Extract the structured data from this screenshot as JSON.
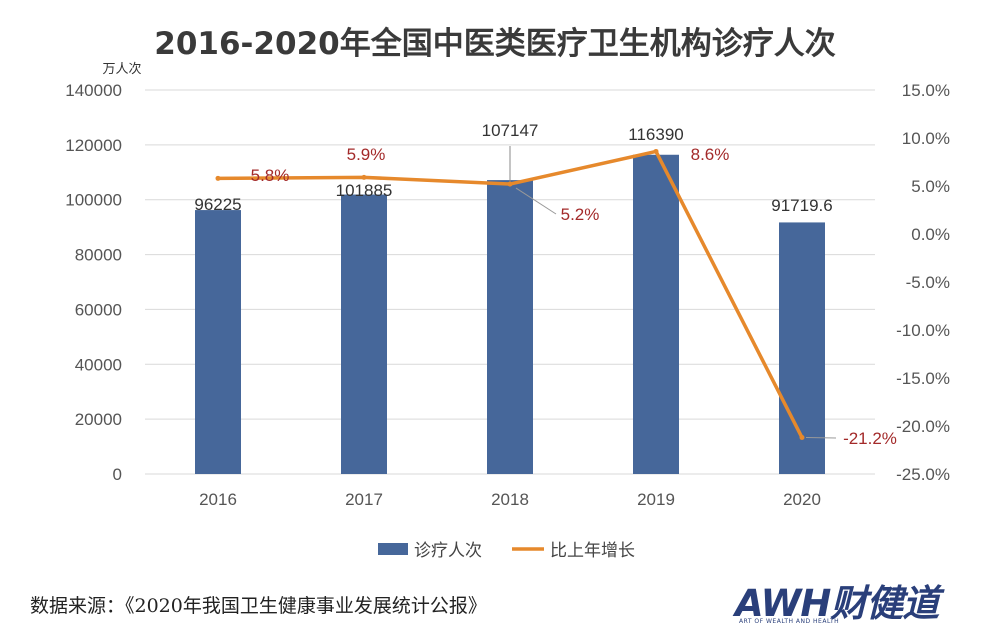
{
  "title": "2016-2020年全国中医类医疗卫生机构诊疗人次",
  "colors": {
    "bar": "#46679a",
    "line": "#e6892c",
    "label_red": "#a32a2a",
    "axis_text": "#555555",
    "grid": "#d9d9d9"
  },
  "chart_data": {
    "type": "bar",
    "categories": [
      "2016",
      "2017",
      "2018",
      "2019",
      "2020"
    ],
    "series": [
      {
        "name": "诊疗人次",
        "type": "bar",
        "axis": "left",
        "values": [
          96225,
          101885,
          107147,
          116390,
          91719.6
        ],
        "labels": [
          "96225",
          "101885",
          "107147",
          "116390",
          "91719.6"
        ]
      },
      {
        "name": "比上年增长",
        "type": "line",
        "axis": "right",
        "values": [
          5.8,
          5.9,
          5.2,
          8.6,
          -21.2
        ],
        "labels": [
          "5.8%",
          "5.9%",
          "5.2%",
          "8.6%",
          "-21.2%"
        ]
      }
    ],
    "y_left": {
      "unit_label": "万人次",
      "min": 0,
      "max": 140000,
      "ticks": [
        "0",
        "20000",
        "40000",
        "60000",
        "80000",
        "100000",
        "120000",
        "140000"
      ]
    },
    "y_right": {
      "min": -25,
      "max": 15,
      "ticks": [
        "-25.0%",
        "-20.0%",
        "-15.0%",
        "-10.0%",
        "-5.0%",
        "0.0%",
        "5.0%",
        "10.0%",
        "15.0%"
      ]
    },
    "grid": true,
    "legend_position": "bottom"
  },
  "source_note": "数据来源：《2020年我国卫生健康事业发展统计公报》",
  "logo": {
    "text": "AWH财健道",
    "subtitle": "ART OF WEALTH AND HEALTH"
  }
}
